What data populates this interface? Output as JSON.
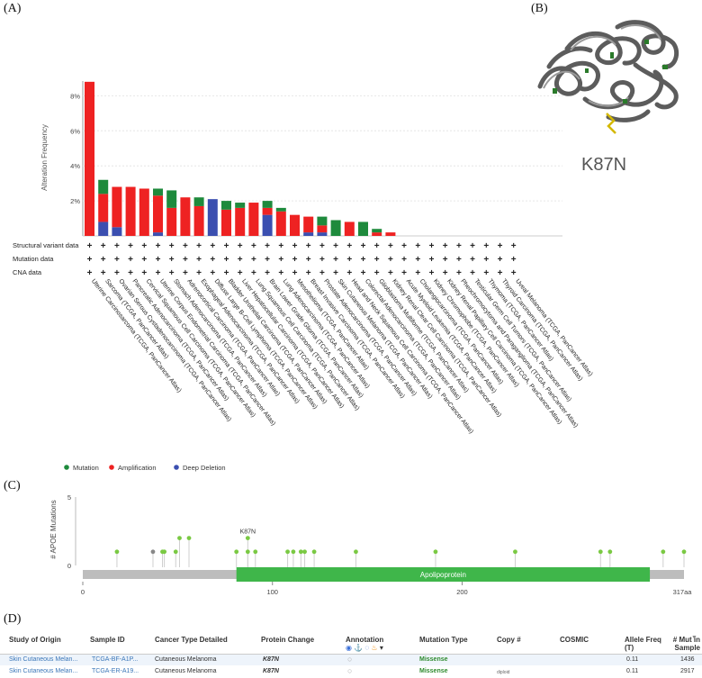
{
  "panels": {
    "a": "(A)",
    "b": "(B)",
    "c": "(C)",
    "d": "(D)"
  },
  "colors": {
    "mutation": "#1e8a3c",
    "amplification": "#ee2222",
    "deep_deletion": "#3b4fb0",
    "lollipop": "#7ac943",
    "gene_track": "#b9b9b9",
    "domain": "#3fb64a"
  },
  "structure_label": "K87N",
  "chart_data": [
    {
      "type": "bar",
      "ylabel": "Alteration Frequency",
      "ylim": [
        0,
        9
      ],
      "yticks": [
        "8%",
        "6%",
        "4%",
        "2%"
      ],
      "ytick_values": [
        8,
        6,
        4,
        2
      ],
      "categories": [
        "Uterine Carcinosarcoma (TCGA, PanCancer Atlas)",
        "Sarcoma (TCGA, PanCancer Atlas)",
        "Ovarian Serous Cystadenocarcinoma (TCGA, PanCancer Atlas)",
        "Pancreatic Adenocarcinoma (TCGA, PanCancer Atlas)",
        "Cervical Squamous Cell Carcinoma (TCGA, PanCancer Atlas)",
        "Uterine Corpus Endometrial Carcinoma (TCGA, PanCancer Atlas)",
        "Stomach Adenocarcinoma (TCGA, PanCancer Atlas)",
        "Adrenocortical Carcinoma (TCGA, PanCancer Atlas)",
        "Esophageal Adenocarcinoma (TCGA, PanCancer Atlas)",
        "Diffuse Large B-Cell Lymphoma (TCGA, PanCancer Atlas)",
        "Bladder Urothelial Carcinoma (TCGA, PanCancer Atlas)",
        "Liver Hepatocellular Carcinoma (TCGA, PanCancer Atlas)",
        "Lung Squamous Cell Carcinoma (TCGA, PanCancer Atlas)",
        "Brain Lower Grade Glioma (TCGA, PanCancer Atlas)",
        "Lung Adenocarcinoma (TCGA, PanCancer Atlas)",
        "Mesothelioma (TCGA, PanCancer Atlas)",
        "Breast Invasive Carcinoma (TCGA, PanCancer Atlas)",
        "Prostate Adenocarcinoma (TCGA, PanCancer Atlas)",
        "Skin Cutaneous Melanoma (TCGA, PanCancer Atlas)",
        "Head and Neck Squamous Cell Carcinoma (TCGA, PanCancer Atlas)",
        "Colorectal Adenocarcinoma (TCGA, PanCancer Atlas)",
        "Glioblastoma Multiforme (TCGA, PanCancer Atlas)",
        "Kidney Renal Clear Cell Carcinoma (TCGA, PanCancer Atlas)",
        "Acute Myeloid Leukemia (TCGA, PanCancer Atlas)",
        "Cholangiocarcinoma (TCGA, PanCancer Atlas)",
        "Kidney Chromophobe (TCGA, PanCancer Atlas)",
        "Kidney Renal Papillary Cell Carcinoma (TCGA, PanCancer Atlas)",
        "Pheochromocytoma and Paraganglioma (TCGA, PanCancer Atlas)",
        "Testicular Germ Cell Tumors (TCGA, PanCancer Atlas)",
        "Thymoma (TCGA, PanCancer Atlas)",
        "Thyroid Carcinoma (TCGA, PanCancer Atlas)",
        "Uveal Melanoma (TCGA, PanCancer Atlas)"
      ],
      "series": [
        {
          "name": "Deep Deletion",
          "values": [
            0,
            0.8,
            0.5,
            0,
            0,
            0.2,
            0,
            0,
            0,
            2.1,
            0,
            0,
            0,
            1.2,
            0,
            0,
            0.2,
            0.2,
            0,
            0,
            0,
            0,
            0,
            0,
            0,
            0,
            0,
            0,
            0,
            0,
            0,
            0
          ]
        },
        {
          "name": "Amplification",
          "values": [
            8.8,
            1.6,
            2.3,
            2.8,
            2.7,
            2.1,
            1.6,
            2.2,
            1.7,
            0,
            1.5,
            1.6,
            1.9,
            0.4,
            1.4,
            1.2,
            0.9,
            0.4,
            0,
            0.8,
            0,
            0.2,
            0.2,
            0,
            0,
            0,
            0,
            0,
            0,
            0,
            0,
            0
          ]
        },
        {
          "name": "Mutation",
          "values": [
            0,
            0.8,
            0,
            0,
            0,
            0.4,
            1.0,
            0,
            0.5,
            0,
            0.5,
            0.3,
            0,
            0.4,
            0.2,
            0,
            0,
            0.5,
            0.9,
            0,
            0.8,
            0.2,
            0,
            0,
            0,
            0,
            0,
            0,
            0,
            0,
            0,
            0
          ]
        }
      ],
      "row_labels": [
        "Structural variant data",
        "Mutation data",
        "CNA data"
      ],
      "row_mark": "+",
      "legend": [
        {
          "name": "Mutation",
          "color": "#1e8a3c"
        },
        {
          "name": "Amplification",
          "color": "#ee2222"
        },
        {
          "name": "Deep Deletion",
          "color": "#3b4fb0"
        }
      ]
    },
    {
      "type": "scatter",
      "ylabel": "# APOE Mutations",
      "ylim": [
        0,
        5
      ],
      "yticks": [
        "5",
        "0"
      ],
      "xlim": [
        0,
        317
      ],
      "xticks": [
        "0",
        "100",
        "200"
      ],
      "x_end_label": "317aa",
      "domain_label": "Apolipoprotein",
      "domain_range": [
        81,
        299
      ],
      "annotation": "K87N",
      "points": [
        {
          "x": 18,
          "y": 1,
          "color": "#7ac943"
        },
        {
          "x": 37,
          "y": 1,
          "color": "#888888"
        },
        {
          "x": 42,
          "y": 1,
          "color": "#7ac943"
        },
        {
          "x": 43,
          "y": 1,
          "color": "#7ac943"
        },
        {
          "x": 49,
          "y": 1,
          "color": "#7ac943"
        },
        {
          "x": 51,
          "y": 2,
          "color": "#7ac943"
        },
        {
          "x": 56,
          "y": 2,
          "color": "#7ac943"
        },
        {
          "x": 81,
          "y": 1,
          "color": "#7ac943"
        },
        {
          "x": 87,
          "y": 2,
          "color": "#7ac943"
        },
        {
          "x": 87,
          "y": 1,
          "color": "#7ac943"
        },
        {
          "x": 91,
          "y": 1,
          "color": "#7ac943"
        },
        {
          "x": 108,
          "y": 1,
          "color": "#7ac943"
        },
        {
          "x": 111,
          "y": 1,
          "color": "#7ac943"
        },
        {
          "x": 115,
          "y": 1,
          "color": "#7ac943"
        },
        {
          "x": 117,
          "y": 1,
          "color": "#7ac943"
        },
        {
          "x": 122,
          "y": 1,
          "color": "#7ac943"
        },
        {
          "x": 144,
          "y": 1,
          "color": "#7ac943"
        },
        {
          "x": 186,
          "y": 1,
          "color": "#7ac943"
        },
        {
          "x": 228,
          "y": 1,
          "color": "#7ac943"
        },
        {
          "x": 273,
          "y": 1,
          "color": "#7ac943"
        },
        {
          "x": 278,
          "y": 1,
          "color": "#7ac943"
        },
        {
          "x": 306,
          "y": 1,
          "color": "#7ac943"
        },
        {
          "x": 317,
          "y": 1,
          "color": "#7ac943"
        }
      ]
    },
    {
      "type": "table",
      "columns": [
        "Study of Origin",
        "Sample ID",
        "Cancer Type Detailed",
        "Protein Change",
        "Annotation",
        "Mutation Type",
        "Copy #",
        "COSMIC",
        "Allele Freq (T)",
        "# Mut in Sample"
      ],
      "rows": [
        [
          "Skin Cutaneous Melan...",
          "TCGA-BF-A1P...",
          "Cutaneous Melanoma",
          "K87N",
          "",
          "Missense",
          "",
          "",
          "0.11",
          "1436"
        ],
        [
          "Skin Cutaneous Melan...",
          "TCGA-ER-A19...",
          "Cutaneous Melanoma",
          "K87N",
          "",
          "Missense",
          "diploid",
          "",
          "0.11",
          "2917"
        ]
      ]
    }
  ]
}
